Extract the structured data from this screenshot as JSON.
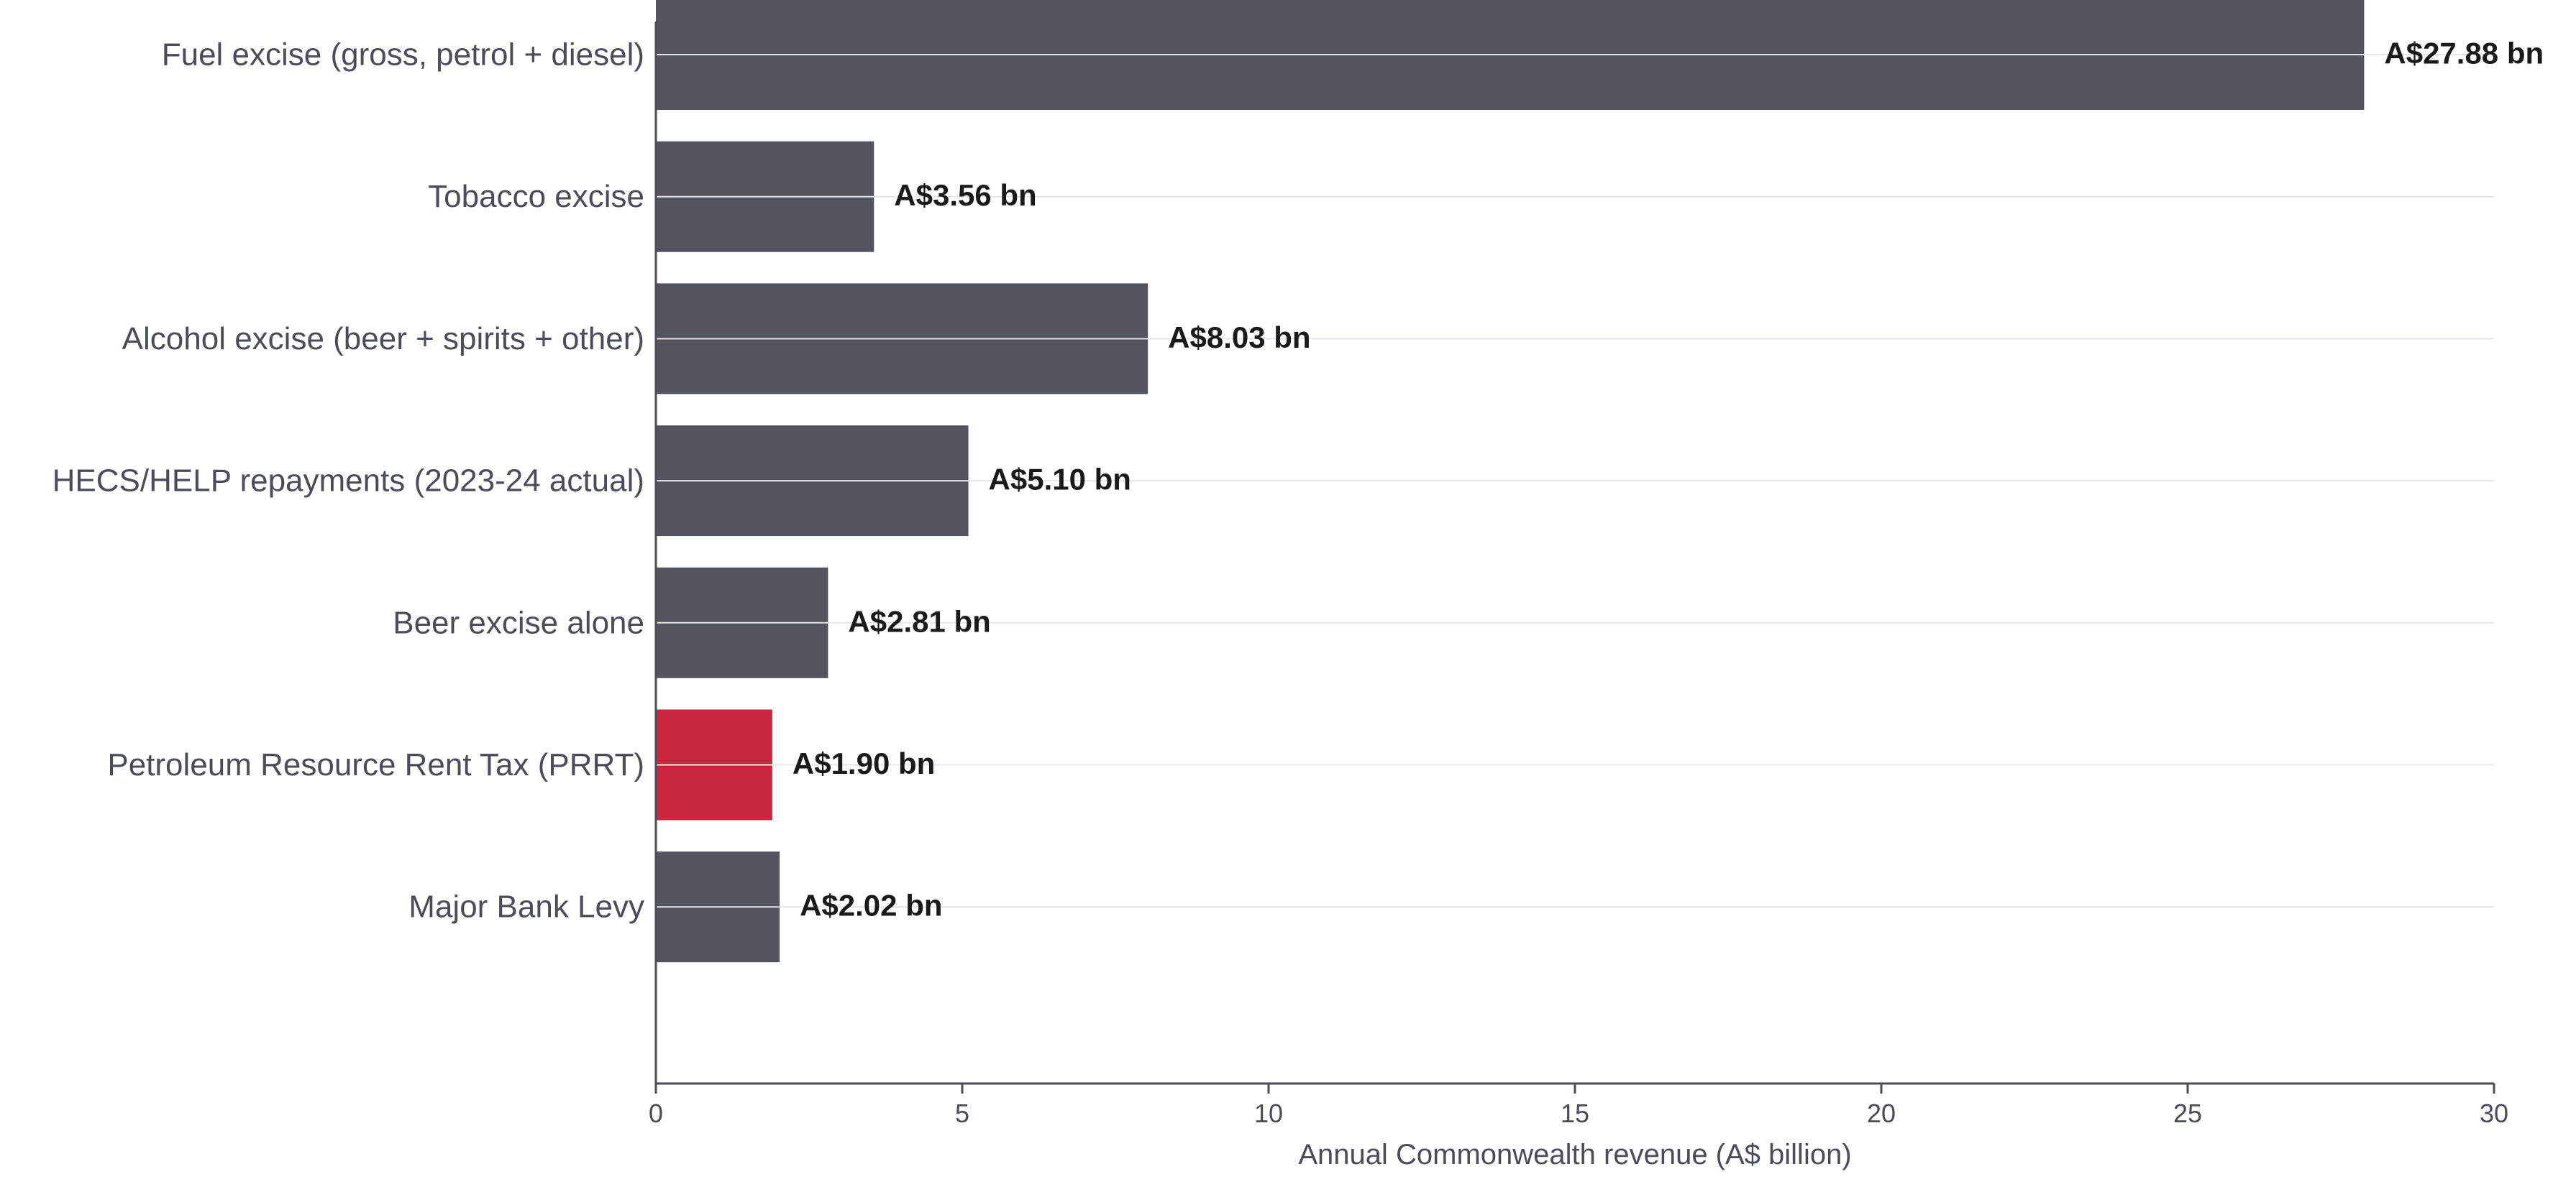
{
  "chart_data": {
    "type": "bar",
    "orientation": "horizontal",
    "categories": [
      "Fuel excise (gross, petrol + diesel)",
      "Tobacco excise",
      "Alcohol excise (beer + spirits + other)",
      "HECS/HELP repayments (2023-24 actual)",
      "Beer excise alone",
      "Petroleum Resource Rent Tax (PRRT)",
      "Major Bank Levy"
    ],
    "values": [
      27.88,
      3.56,
      8.03,
      5.1,
      2.81,
      1.9,
      2.02
    ],
    "value_labels": [
      "A$27.88 bn",
      "A$3.56 bn",
      "A$8.03 bn",
      "A$5.10 bn",
      "A$2.81 bn",
      "A$1.90 bn",
      "A$2.02 bn"
    ],
    "bar_colors": [
      "#52545f",
      "#52545f",
      "#52545f",
      "#52545f",
      "#52545f",
      "#c8273e",
      "#52545f"
    ],
    "highlight_color": "#c8273e",
    "default_color": "#52545f",
    "xlabel": "Annual Commonwealth revenue (A$ billion)",
    "ylabel": "",
    "xlim": [
      0,
      30
    ],
    "xticks": [
      0,
      5,
      10,
      15,
      20,
      25,
      30
    ],
    "xtick_labels": [
      "0",
      "5",
      "10",
      "15",
      "20",
      "25",
      "30"
    ],
    "grid": "horizontal gridlines at category positions",
    "legend": "none"
  }
}
